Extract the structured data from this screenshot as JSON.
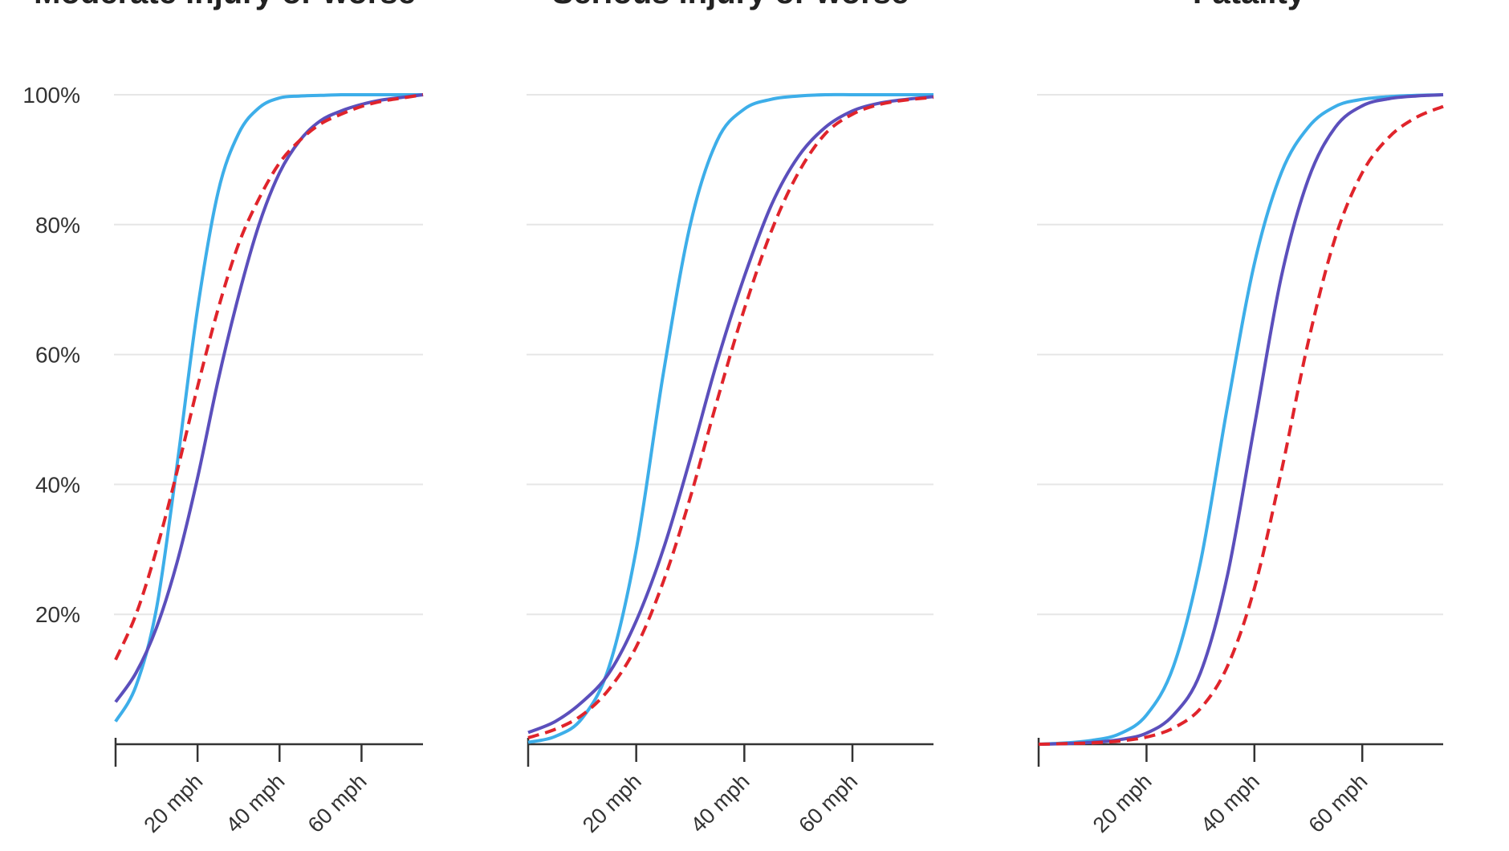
{
  "chart_data": [
    {
      "type": "line",
      "title": "Moderate injury or worse",
      "xlabel": "",
      "ylabel": "",
      "x_ticks": [
        {
          "value": 20,
          "label": "20 mph"
        },
        {
          "value": 40,
          "label": "40 mph"
        },
        {
          "value": 60,
          "label": "60 mph"
        }
      ],
      "y_ticks": [
        {
          "value": 20,
          "label": "20%"
        },
        {
          "value": 40,
          "label": "40%"
        },
        {
          "value": 60,
          "label": "60%"
        },
        {
          "value": 80,
          "label": "80%"
        },
        {
          "value": 100,
          "label": "100%"
        }
      ],
      "xlim": [
        0,
        75
      ],
      "ylim": [
        0,
        100
      ],
      "grid": true,
      "series": [
        {
          "color": "#3daee9",
          "dash": false,
          "x": [
            0,
            5,
            10,
            15,
            20,
            25,
            30,
            35,
            40,
            45,
            50,
            55,
            60,
            65,
            70,
            75
          ],
          "y": [
            3.5,
            9,
            21,
            43,
            67,
            85,
            94,
            98,
            99.5,
            99.8,
            99.9,
            100,
            100,
            100,
            100,
            100
          ]
        },
        {
          "color": "#5b4fbc",
          "dash": false,
          "x": [
            0,
            5,
            10,
            15,
            20,
            25,
            30,
            35,
            40,
            45,
            50,
            55,
            60,
            65,
            70,
            75
          ],
          "y": [
            6.5,
            11,
            18,
            28,
            41,
            56,
            69,
            80,
            88,
            93,
            96,
            97.5,
            98.5,
            99.2,
            99.6,
            100
          ]
        },
        {
          "color": "#e0242b",
          "dash": true,
          "x": [
            0,
            5,
            10,
            15,
            20,
            25,
            30,
            35,
            40,
            45,
            50,
            55,
            60,
            65,
            70,
            75
          ],
          "y": [
            13,
            20,
            30,
            42,
            55,
            67,
            77,
            84,
            89.5,
            93,
            95.5,
            97,
            98.2,
            99,
            99.5,
            100
          ]
        }
      ]
    },
    {
      "type": "line",
      "title": "Serious injury or worse",
      "xlabel": "",
      "ylabel": "",
      "x_ticks": [
        {
          "value": 20,
          "label": "20 mph"
        },
        {
          "value": 40,
          "label": "40 mph"
        },
        {
          "value": 60,
          "label": "60 mph"
        }
      ],
      "y_ticks": [],
      "xlim": [
        0,
        75
      ],
      "ylim": [
        0,
        100
      ],
      "grid": true,
      "series": [
        {
          "color": "#3daee9",
          "dash": false,
          "x": [
            0,
            5,
            10,
            15,
            20,
            25,
            30,
            35,
            40,
            45,
            50,
            55,
            60,
            65,
            70,
            75
          ],
          "y": [
            0.3,
            1.2,
            4,
            12,
            30,
            57,
            80,
            93,
            97.8,
            99.3,
            99.8,
            100,
            100,
            100,
            100,
            100
          ]
        },
        {
          "color": "#5b4fbc",
          "dash": false,
          "x": [
            0,
            5,
            10,
            15,
            20,
            25,
            30,
            35,
            40,
            45,
            50,
            55,
            60,
            65,
            70,
            75
          ],
          "y": [
            1.8,
            3.5,
            6.5,
            11,
            19,
            30,
            44,
            59,
            72,
            83,
            90.5,
            95,
            97.5,
            98.7,
            99.3,
            99.7
          ]
        },
        {
          "color": "#e0242b",
          "dash": true,
          "x": [
            0,
            5,
            10,
            15,
            20,
            25,
            30,
            35,
            40,
            45,
            50,
            55,
            60,
            65,
            70,
            75
          ],
          "y": [
            1,
            2.3,
            4.5,
            8.5,
            15,
            25,
            38,
            53,
            67,
            79,
            88,
            94,
            97,
            98.5,
            99.2,
            99.6
          ]
        }
      ]
    },
    {
      "type": "line",
      "title": "Fatality",
      "xlabel": "",
      "ylabel": "",
      "x_ticks": [
        {
          "value": 20,
          "label": "20 mph"
        },
        {
          "value": 40,
          "label": "40 mph"
        },
        {
          "value": 60,
          "label": "60 mph"
        }
      ],
      "y_ticks": [],
      "xlim": [
        0,
        75
      ],
      "ylim": [
        0,
        100
      ],
      "grid": true,
      "series": [
        {
          "color": "#3daee9",
          "dash": false,
          "x": [
            0,
            5,
            10,
            15,
            20,
            25,
            30,
            35,
            40,
            45,
            50,
            55,
            60,
            65,
            70,
            75
          ],
          "y": [
            0,
            0.2,
            0.6,
            1.6,
            4.5,
            12,
            28,
            52,
            74,
            88,
            95,
            98.2,
            99.3,
            99.7,
            99.9,
            100
          ]
        },
        {
          "color": "#5b4fbc",
          "dash": false,
          "x": [
            0,
            5,
            10,
            15,
            20,
            25,
            30,
            35,
            40,
            45,
            50,
            55,
            60,
            65,
            70,
            75
          ],
          "y": [
            0,
            0.1,
            0.3,
            0.7,
            1.7,
            4.5,
            11,
            26,
            49,
            72,
            87,
            95,
            98.3,
            99.4,
            99.8,
            100
          ]
        },
        {
          "color": "#e0242b",
          "dash": true,
          "x": [
            0,
            5,
            10,
            15,
            20,
            25,
            30,
            35,
            40,
            45,
            50,
            55,
            60,
            65,
            70,
            75
          ],
          "y": [
            0,
            0.1,
            0.2,
            0.5,
            1.1,
            2.5,
            5.5,
            12,
            24,
            42,
            62,
            78,
            88,
            93.5,
            96.5,
            98.2
          ]
        }
      ]
    }
  ]
}
